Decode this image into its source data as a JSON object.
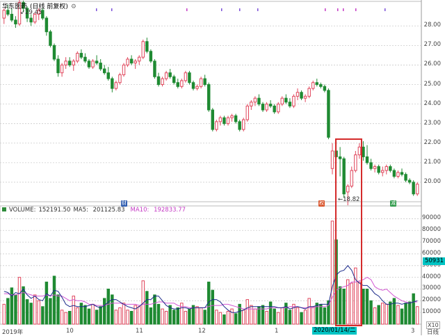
{
  "header": {
    "stock_name": "华东医药",
    "period_label": "(日线 前复权)",
    "settings_icon": "gear-icon"
  },
  "volume_header": {
    "label": "VOLUME:",
    "volume": "152191.50",
    "ma5_label": "MA5:",
    "ma5": "201125.83",
    "ma10_label": "MA10:",
    "ma10": "192833.77"
  },
  "annotations": {
    "high_label": "29.45",
    "low_label": "18.82",
    "volume_highlight": "50931",
    "volume_unit": "X10"
  },
  "badges": [
    {
      "text": "财",
      "color": "#2f5db0"
    },
    {
      "text": "权",
      "color": "#d9532a"
    },
    {
      "text": "减",
      "color": "#2f9a4a"
    }
  ],
  "x_axis": {
    "labels": [
      "2019年",
      "10",
      "11",
      "12",
      "1",
      "3"
    ],
    "selected_date": "2020/01/14/二",
    "right_label": "日线"
  },
  "chart_data": {
    "type": "candlestick",
    "price_ylim": [
      19,
      28.9
    ],
    "price_ticks": [
      "28.00",
      "27.00",
      "26.00",
      "25.00",
      "24.00",
      "23.00",
      "22.00",
      "21.00",
      "20.00"
    ],
    "volume_ylim": [
      0,
      95000
    ],
    "volume_ticks": [
      "90000",
      "80000",
      "70000",
      "60000",
      "50000",
      "40000",
      "30000",
      "20000",
      "10000"
    ],
    "candles": [
      [
        28.4,
        28.9,
        28.1,
        28.8
      ],
      [
        28.8,
        29.1,
        28.5,
        28.6
      ],
      [
        28.6,
        28.9,
        28.2,
        28.3
      ],
      [
        28.3,
        28.5,
        27.9,
        28.1
      ],
      [
        28.1,
        29.45,
        28.0,
        29.2
      ],
      [
        29.2,
        29.3,
        28.7,
        28.9
      ],
      [
        28.9,
        29.0,
        28.2,
        28.4
      ],
      [
        28.4,
        28.6,
        28.0,
        28.2
      ],
      [
        28.2,
        28.7,
        28.1,
        28.6
      ],
      [
        28.6,
        28.9,
        28.3,
        28.8
      ],
      [
        28.8,
        28.9,
        28.3,
        28.4
      ],
      [
        28.4,
        28.5,
        27.5,
        27.7
      ],
      [
        27.7,
        27.8,
        26.9,
        27.0
      ],
      [
        27.0,
        27.1,
        26.2,
        26.3
      ],
      [
        26.3,
        26.5,
        25.4,
        25.6
      ],
      [
        25.6,
        26.1,
        25.4,
        26.0
      ],
      [
        26.0,
        26.4,
        25.8,
        26.2
      ],
      [
        26.2,
        26.4,
        25.9,
        26.0
      ],
      [
        26.0,
        26.3,
        25.7,
        26.2
      ],
      [
        26.2,
        26.7,
        26.1,
        26.6
      ],
      [
        26.6,
        26.8,
        26.3,
        26.4
      ],
      [
        26.4,
        26.6,
        26.1,
        26.2
      ],
      [
        26.2,
        26.3,
        25.8,
        25.9
      ],
      [
        25.9,
        26.3,
        25.8,
        26.2
      ],
      [
        26.2,
        26.5,
        26.0,
        26.1
      ],
      [
        26.1,
        26.3,
        25.7,
        25.8
      ],
      [
        25.8,
        26.0,
        25.5,
        25.6
      ],
      [
        25.6,
        25.9,
        25.2,
        25.3
      ],
      [
        25.3,
        25.4,
        24.6,
        24.8
      ],
      [
        24.8,
        25.2,
        24.7,
        25.1
      ],
      [
        25.1,
        25.6,
        25.0,
        25.5
      ],
      [
        25.5,
        26.1,
        25.4,
        26.0
      ],
      [
        26.0,
        26.4,
        25.9,
        26.3
      ],
      [
        26.3,
        26.5,
        26.0,
        26.1
      ],
      [
        26.1,
        26.3,
        25.8,
        26.2
      ],
      [
        26.2,
        26.5,
        26.0,
        26.4
      ],
      [
        26.4,
        27.3,
        26.3,
        27.2
      ],
      [
        27.2,
        27.4,
        26.6,
        26.7
      ],
      [
        26.7,
        26.8,
        26.1,
        26.2
      ],
      [
        26.2,
        26.3,
        25.3,
        25.4
      ],
      [
        25.4,
        25.6,
        24.9,
        25.0
      ],
      [
        25.0,
        25.4,
        24.9,
        25.3
      ],
      [
        25.3,
        25.7,
        25.2,
        25.6
      ],
      [
        25.6,
        25.8,
        25.3,
        25.4
      ],
      [
        25.4,
        25.5,
        25.0,
        25.1
      ],
      [
        25.1,
        25.3,
        24.8,
        24.9
      ],
      [
        24.9,
        25.3,
        24.8,
        25.2
      ],
      [
        25.2,
        25.7,
        25.1,
        25.6
      ],
      [
        25.6,
        25.7,
        25.0,
        25.1
      ],
      [
        25.1,
        25.2,
        24.7,
        24.8
      ],
      [
        24.8,
        25.0,
        24.7,
        24.9
      ],
      [
        24.9,
        25.4,
        24.8,
        25.3
      ],
      [
        25.3,
        25.5,
        24.9,
        25.0
      ],
      [
        25.0,
        25.1,
        23.6,
        23.7
      ],
      [
        23.7,
        23.8,
        22.6,
        22.7
      ],
      [
        22.7,
        23.2,
        22.6,
        23.1
      ],
      [
        23.1,
        23.4,
        22.9,
        23.3
      ],
      [
        23.3,
        23.4,
        22.9,
        23.0
      ],
      [
        23.0,
        23.4,
        22.9,
        23.3
      ],
      [
        23.3,
        23.5,
        23.1,
        23.4
      ],
      [
        23.4,
        23.5,
        23.0,
        23.1
      ],
      [
        23.1,
        23.2,
        22.6,
        22.7
      ],
      [
        22.7,
        23.3,
        22.6,
        23.2
      ],
      [
        23.2,
        24.0,
        23.1,
        23.9
      ],
      [
        23.9,
        24.2,
        23.7,
        24.1
      ],
      [
        24.1,
        24.4,
        23.9,
        24.3
      ],
      [
        24.3,
        24.5,
        23.9,
        24.0
      ],
      [
        24.0,
        24.1,
        23.6,
        23.7
      ],
      [
        23.7,
        24.1,
        23.6,
        24.0
      ],
      [
        24.0,
        24.2,
        23.8,
        23.9
      ],
      [
        23.9,
        24.0,
        23.5,
        23.6
      ],
      [
        23.6,
        24.1,
        23.5,
        24.0
      ],
      [
        24.0,
        24.4,
        23.9,
        24.3
      ],
      [
        24.3,
        24.5,
        24.0,
        24.1
      ],
      [
        24.1,
        24.3,
        23.8,
        23.9
      ],
      [
        23.9,
        24.5,
        23.8,
        24.4
      ],
      [
        24.4,
        24.8,
        24.2,
        24.6
      ],
      [
        24.6,
        24.7,
        24.2,
        24.3
      ],
      [
        24.3,
        24.5,
        24.1,
        24.4
      ],
      [
        24.4,
        24.9,
        24.3,
        24.8
      ],
      [
        24.8,
        25.2,
        24.7,
        25.1
      ],
      [
        25.1,
        25.3,
        24.9,
        25.0
      ],
      [
        25.0,
        25.1,
        24.8,
        24.9
      ],
      [
        24.9,
        25.0,
        24.6,
        24.7
      ],
      [
        24.7,
        24.8,
        22.2,
        22.3
      ],
      [
        20.7,
        22.0,
        20.4,
        21.6
      ],
      [
        21.6,
        22.1,
        21.1,
        21.3
      ],
      [
        21.3,
        21.8,
        20.3,
        21.2
      ],
      [
        21.2,
        21.3,
        19.2,
        19.4
      ],
      [
        19.5,
        19.9,
        18.82,
        19.8
      ],
      [
        19.8,
        20.8,
        19.7,
        20.6
      ],
      [
        20.6,
        21.6,
        20.5,
        21.4
      ],
      [
        21.4,
        22.0,
        21.2,
        21.8
      ],
      [
        21.8,
        22.1,
        21.1,
        21.3
      ],
      [
        21.3,
        21.9,
        20.9,
        21.0
      ],
      [
        21.0,
        21.2,
        20.6,
        20.7
      ],
      [
        20.7,
        20.9,
        20.5,
        20.8
      ],
      [
        20.8,
        20.9,
        20.4,
        20.5
      ],
      [
        20.5,
        20.8,
        20.3,
        20.6
      ],
      [
        20.6,
        20.9,
        20.4,
        20.8
      ],
      [
        20.8,
        20.9,
        20.5,
        20.6
      ],
      [
        20.6,
        20.7,
        20.2,
        20.3
      ],
      [
        20.3,
        20.6,
        20.2,
        20.5
      ],
      [
        20.5,
        20.7,
        20.3,
        20.4
      ],
      [
        20.4,
        20.5,
        20.0,
        20.1
      ],
      [
        20.1,
        20.2,
        19.9,
        20.0
      ],
      [
        20.0,
        20.1,
        19.3,
        19.4
      ],
      [
        19.4,
        20.0,
        19.3,
        19.9
      ]
    ],
    "volumes": [
      17000,
      22000,
      31000,
      25000,
      40000,
      32000,
      21000,
      18000,
      25000,
      20000,
      15000,
      36000,
      22000,
      41000,
      25000,
      12000,
      10000,
      11000,
      24000,
      14000,
      18000,
      16000,
      13000,
      17000,
      12000,
      15000,
      22000,
      30000,
      25000,
      12000,
      14000,
      18000,
      12000,
      11000,
      16000,
      15000,
      37000,
      28000,
      14000,
      25000,
      17000,
      13000,
      11000,
      16000,
      12000,
      14000,
      18000,
      11000,
      13000,
      16000,
      15000,
      14000,
      12000,
      36000,
      29000,
      12000,
      10000,
      8000,
      11000,
      13000,
      9000,
      17000,
      12000,
      21000,
      16000,
      13000,
      15000,
      16000,
      11000,
      19000,
      13000,
      10000,
      14000,
      18000,
      12000,
      17000,
      14000,
      10000,
      12000,
      22000,
      15000,
      18000,
      17000,
      14000,
      20000,
      88000,
      72000,
      32000,
      30000,
      38000,
      35000,
      48000,
      36000,
      30000,
      30000,
      20000,
      14000,
      16000,
      18000,
      17000,
      19000,
      22000,
      16000,
      13000,
      18000,
      19000,
      26000,
      15000
    ],
    "volume_ma5": [
      28000,
      27000,
      24000,
      27000,
      26000,
      30000,
      25000,
      22000,
      24000,
      21000,
      20000,
      26000,
      24000,
      29000,
      28000,
      23000,
      17000,
      15000,
      16000,
      15000,
      15000,
      15000,
      16000,
      17000,
      15000,
      14000,
      16000,
      19000,
      21000,
      21000,
      19000,
      17000,
      15000,
      14000,
      13000,
      15000,
      18000,
      21000,
      21000,
      24000,
      24000,
      20000,
      16000,
      14000,
      13000,
      13000,
      14000,
      14000,
      13000,
      14000,
      14000,
      14000,
      14000,
      19000,
      21000,
      21000,
      19000,
      15000,
      12000,
      10000,
      10000,
      11000,
      12000,
      14000,
      15000,
      15000,
      15000,
      15000,
      15000,
      15000,
      15000,
      14000,
      14000,
      15000,
      13000,
      14000,
      15000,
      14000,
      13000,
      15000,
      15000,
      16000,
      17000,
      17000,
      17000,
      32000,
      42000,
      45000,
      46000,
      50000,
      46000,
      38000,
      35000,
      33000,
      33000,
      30000,
      26000,
      24000,
      20000,
      17000,
      17000,
      18000,
      18000,
      17000,
      18000,
      18000,
      19000,
      20000
    ],
    "volume_ma10": [
      26000,
      26000,
      25000,
      25000,
      26000,
      27000,
      26000,
      25000,
      24000,
      24000,
      24000,
      25000,
      24000,
      25000,
      24000,
      24000,
      22000,
      20000,
      21000,
      20000,
      20000,
      19000,
      17000,
      17000,
      16000,
      16000,
      16000,
      17000,
      18000,
      18000,
      18000,
      17000,
      17000,
      17000,
      17000,
      16000,
      17000,
      17000,
      17000,
      18000,
      19000,
      19000,
      18000,
      18000,
      18000,
      16000,
      15000,
      15000,
      14000,
      14000,
      14000,
      14000,
      14000,
      15000,
      16000,
      16000,
      16000,
      17000,
      17000,
      16000,
      15000,
      14000,
      13000,
      13000,
      13000,
      13000,
      13000,
      13000,
      13000,
      14000,
      14000,
      14000,
      14000,
      14000,
      15000,
      15000,
      15000,
      14000,
      14000,
      14000,
      14000,
      15000,
      15000,
      15000,
      16000,
      23000,
      29000,
      31000,
      32000,
      33000,
      36000,
      36000,
      37000,
      38000,
      40000,
      38000,
      32000,
      30000,
      29000,
      30000,
      27000,
      24000,
      22000,
      20000,
      19000,
      18000,
      19000,
      19000
    ]
  }
}
